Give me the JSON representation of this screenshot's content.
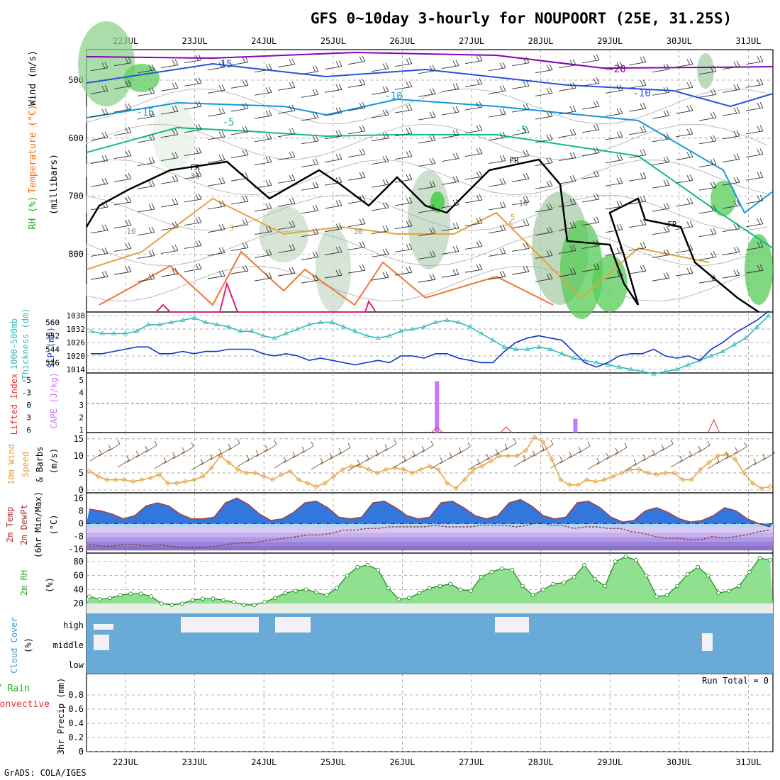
{
  "header": {
    "title": "GFS 0~10day 3-hourly for NOUPOORT (25E, 31.25S)"
  },
  "footer": {
    "credit": "GrADS: COLA/IGES"
  },
  "dates": [
    "22JUL",
    "23JUL",
    "24JUL",
    "25JUL",
    "26JUL",
    "27JUL",
    "28JUL",
    "29JUL",
    "30JUL",
    "31JUL"
  ],
  "colors": {
    "thickness": "#33bbbb",
    "slp": "#1133cc",
    "wind": "#e6a23c",
    "cape": "#cc77ff",
    "lifted": "#ee3333",
    "temp_fill": "#3377dd",
    "dew": "#884444",
    "rh": "#22cc22",
    "cloud": "#6aaad6"
  },
  "panel_labels": {
    "upper": [
      "RH (%)",
      "Temperature (°C)",
      "Wind (m/s)"
    ],
    "upper_axis": "(millibars)",
    "thk": [
      "1000-500mb",
      "Thickness (dm)",
      "SLP (mb)"
    ],
    "cape": [
      "Lifted Index",
      "CAPE (J/kg)"
    ],
    "wind": [
      "10m Wind",
      "Speed",
      "& Barbs",
      "(m/s)"
    ],
    "temp": [
      "2m Temp",
      "2m DewPt",
      "(6hr Min/Max)",
      "(°C)"
    ],
    "rh": [
      "2m RH",
      "(%)"
    ],
    "cloud": [
      "Cloud Cover",
      "(%)"
    ],
    "precip": [
      "Total / Rain",
      "Convective",
      "3hr Precip (mm)"
    ]
  },
  "run_total": "Run Total = 0",
  "chart_data": [
    {
      "type": "contour",
      "name": "upper",
      "ylabel": "(millibars)",
      "yticks": [
        "500",
        "600",
        "700",
        "800"
      ],
      "contour_labels": [
        "-15",
        "-20",
        "-10",
        "-15",
        "-10",
        "-5",
        "-5",
        "FR",
        "FR",
        "FR",
        "30",
        "10",
        "30",
        "10",
        "-3",
        "-5",
        "5"
      ]
    },
    {
      "type": "line",
      "name": "thickness_slp",
      "yticks_left": [
        "560",
        "552",
        "544",
        "536"
      ],
      "yticks_right": [
        "1038",
        "1032",
        "1026",
        "1020",
        "1014"
      ],
      "series": [
        {
          "name": "1000-500mb Thickness (dm)",
          "values": [
            1031,
            1030,
            1030,
            1030,
            1031,
            1034,
            1034,
            1035,
            1036,
            1037,
            1035,
            1034,
            1033,
            1031,
            1031,
            1029,
            1028,
            1030,
            1032,
            1034,
            1035,
            1035,
            1033,
            1031,
            1029,
            1028,
            1029,
            1031,
            1032,
            1033,
            1035,
            1036,
            1035,
            1033,
            1030,
            1027,
            1024,
            1023,
            1023,
            1024,
            1023,
            1021,
            1019,
            1018,
            1017,
            1016,
            1015,
            1014,
            1013,
            1012,
            1013,
            1014,
            1016,
            1018,
            1020,
            1022,
            1025,
            1028,
            1033,
            1038
          ]
        },
        {
          "name": "SLP (mb)",
          "values": [
            1021,
            1021,
            1022,
            1023,
            1024,
            1024,
            1021,
            1021,
            1022,
            1021,
            1022,
            1022,
            1023,
            1023,
            1023,
            1021,
            1020,
            1021,
            1020,
            1018,
            1019,
            1018,
            1017,
            1016,
            1017,
            1018,
            1017,
            1020,
            1020,
            1019,
            1021,
            1021,
            1019,
            1018,
            1017,
            1017,
            1022,
            1026,
            1028,
            1029,
            1028,
            1027,
            1022,
            1017,
            1015,
            1017,
            1020,
            1021,
            1021,
            1023,
            1020,
            1019,
            1020,
            1018,
            1023,
            1026,
            1030,
            1033,
            1036,
            1040
          ]
        }
      ]
    },
    {
      "type": "bar",
      "name": "cape_li",
      "yticks_left": [
        "-5",
        "-3",
        "0",
        "3",
        "6"
      ],
      "yticks_right": [
        "5",
        "4",
        "3",
        "2",
        "1"
      ],
      "series": [
        {
          "name": "CAPE (J/kg)",
          "bars": [
            {
              "day": 4.5,
              "value": 5.1
            },
            {
              "day": 6.5,
              "value": 2.1
            }
          ]
        },
        {
          "name": "Lifted Index",
          "peaks": [
            4.5,
            5.5,
            8.5
          ]
        }
      ]
    },
    {
      "type": "line",
      "name": "wind10m",
      "yticks": [
        "15",
        "10",
        "5",
        "0"
      ],
      "series": [
        {
          "name": "10m Wind Speed",
          "values": [
            5.5,
            4,
            3,
            3,
            3,
            2.5,
            3,
            3.5,
            4.5,
            2,
            2,
            2.5,
            3,
            4,
            6.5,
            10,
            8,
            6,
            5,
            5,
            4,
            3,
            4.5,
            5.5,
            3,
            2,
            1,
            2,
            4,
            6,
            7,
            7,
            6,
            5,
            6,
            6.5,
            6,
            5,
            6,
            7,
            6,
            2,
            0.5,
            3,
            6,
            7,
            8.5,
            10,
            10,
            10,
            11.5,
            15.5,
            14,
            9,
            3,
            1.5,
            1.5,
            3,
            2.5,
            3,
            4,
            5,
            6,
            6,
            5,
            4.5,
            5,
            5,
            3,
            3,
            6,
            8,
            10,
            10.5,
            9,
            5,
            2,
            0.5,
            1
          ]
        }
      ]
    },
    {
      "type": "area",
      "name": "temp_dew",
      "yticks": [
        "16",
        "8",
        "0",
        "-8",
        "-16"
      ],
      "series": [
        {
          "name": "2m Temp",
          "values": [
            9,
            8,
            6,
            3,
            5,
            11,
            13,
            11,
            6,
            3,
            3,
            4,
            13,
            16,
            12,
            6,
            2,
            3,
            7,
            13,
            14,
            10,
            4,
            3,
            4,
            13,
            14,
            10,
            5,
            3,
            4,
            13,
            14,
            10,
            5,
            3,
            5,
            13,
            15,
            11,
            5,
            3,
            4,
            13,
            14,
            10,
            4,
            1,
            2,
            8,
            10,
            7,
            3,
            1,
            2,
            5,
            10,
            8,
            3,
            0,
            -2
          ]
        },
        {
          "name": "2m DewPt",
          "values": [
            -13,
            -14,
            -14,
            -13,
            -13,
            -14,
            -13,
            -14,
            -15,
            -15,
            -15,
            -14,
            -13,
            -12,
            -12,
            -11,
            -10,
            -9,
            -8,
            -7,
            -7,
            -6,
            -4,
            -4,
            -3,
            -3,
            -2,
            -2,
            -2,
            -2,
            -1,
            -2,
            -2,
            -2,
            -1,
            -1,
            -1,
            -2,
            -1,
            1,
            -1,
            -1,
            -3,
            -2,
            -2,
            -3,
            -3,
            -5,
            -6,
            -8,
            -9,
            -9,
            -10,
            -10,
            -8,
            -9,
            -8,
            -7,
            -5,
            -4
          ]
        }
      ]
    },
    {
      "type": "area",
      "name": "rh2m",
      "yticks": [
        "80",
        "60",
        "40",
        "20"
      ],
      "series": [
        {
          "name": "2m RH",
          "values": [
            30,
            26,
            28,
            32,
            34,
            34,
            30,
            20,
            18,
            20,
            25,
            27,
            27,
            25,
            22,
            18,
            18,
            22,
            28,
            35,
            38,
            40,
            36,
            32,
            42,
            60,
            72,
            75,
            68,
            42,
            26,
            28,
            35,
            42,
            45,
            48,
            40,
            38,
            58,
            65,
            70,
            68,
            45,
            32,
            40,
            48,
            50,
            58,
            75,
            55,
            45,
            80,
            87,
            82,
            60,
            30,
            32,
            45,
            62,
            72,
            60,
            35,
            38,
            45,
            65,
            85,
            82
          ]
        }
      ]
    },
    {
      "type": "heatmap",
      "name": "cloud",
      "yticks": [
        "high",
        "middle",
        "low"
      ]
    },
    {
      "type": "bar",
      "name": "precip",
      "yticks": [
        "0.8",
        "0.6",
        "0.4",
        "0.2",
        "0"
      ],
      "ylim": [
        0,
        1
      ],
      "values": []
    }
  ]
}
